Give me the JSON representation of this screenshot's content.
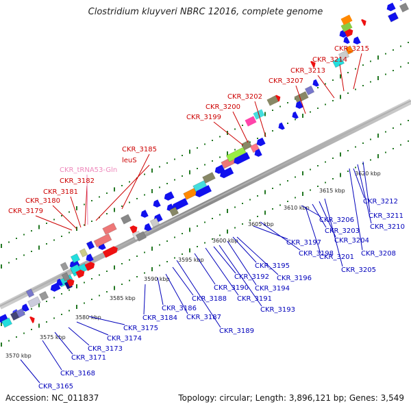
{
  "title": "Clostridium kluyveri NBRC 12016, complete genome",
  "footer": {
    "accession": "Accession: NC_011837",
    "info": "Topology: circular; Length: 3,896,121 bp; Genes: 3,549"
  },
  "kbp_ticks": [
    "3570 kbp",
    "3575 kbp",
    "3580 kbp",
    "3585 kbp",
    "3590 kbp",
    "3595 kbp",
    "3600 kbp",
    "3605 kbp",
    "3610 kbp",
    "3615 kbp",
    "3620 kbp"
  ],
  "genes_red": [
    "CKR_3179",
    "CKR_3180",
    "CKR_3181",
    "CKR_3182",
    "CKR_tRNA53-Gln",
    "leuS",
    "CKR_3185",
    "CKR_3199",
    "CKR_3200",
    "CKR_3202",
    "CKR_3207",
    "CKR_3213",
    "CKR_3214",
    "CKR_3215"
  ],
  "genes_blue": [
    "CKR_3165",
    "CKR_3168",
    "CKR_3171",
    "CKR_3173",
    "CKR_3174",
    "CKR_3175",
    "CKR_3184",
    "CKR_3186",
    "CKR_3187",
    "CKR_3188",
    "CKR_3189",
    "CKR_3190",
    "CKR_3191",
    "CKR_3192",
    "CKR_3193",
    "CKR_3194",
    "CKR_3195",
    "CKR_3196",
    "CKR_3197",
    "CKR_3198",
    "CKR_3201",
    "CKR_3203",
    "CKR_3204",
    "CKR_3205",
    "CKR_3206",
    "CKR_3208",
    "CKR_3210",
    "CKR_3211",
    "CKR_3212"
  ],
  "colors": {
    "forward_gene": "#ee1111",
    "reverse_gene": "#1111ee",
    "trna": "#ee88bb",
    "label_red": "#cc0000",
    "label_blue": "#0000bb",
    "label_pink": "#ee88bb",
    "backbone": "#999999",
    "frame_dots": "#227722"
  }
}
